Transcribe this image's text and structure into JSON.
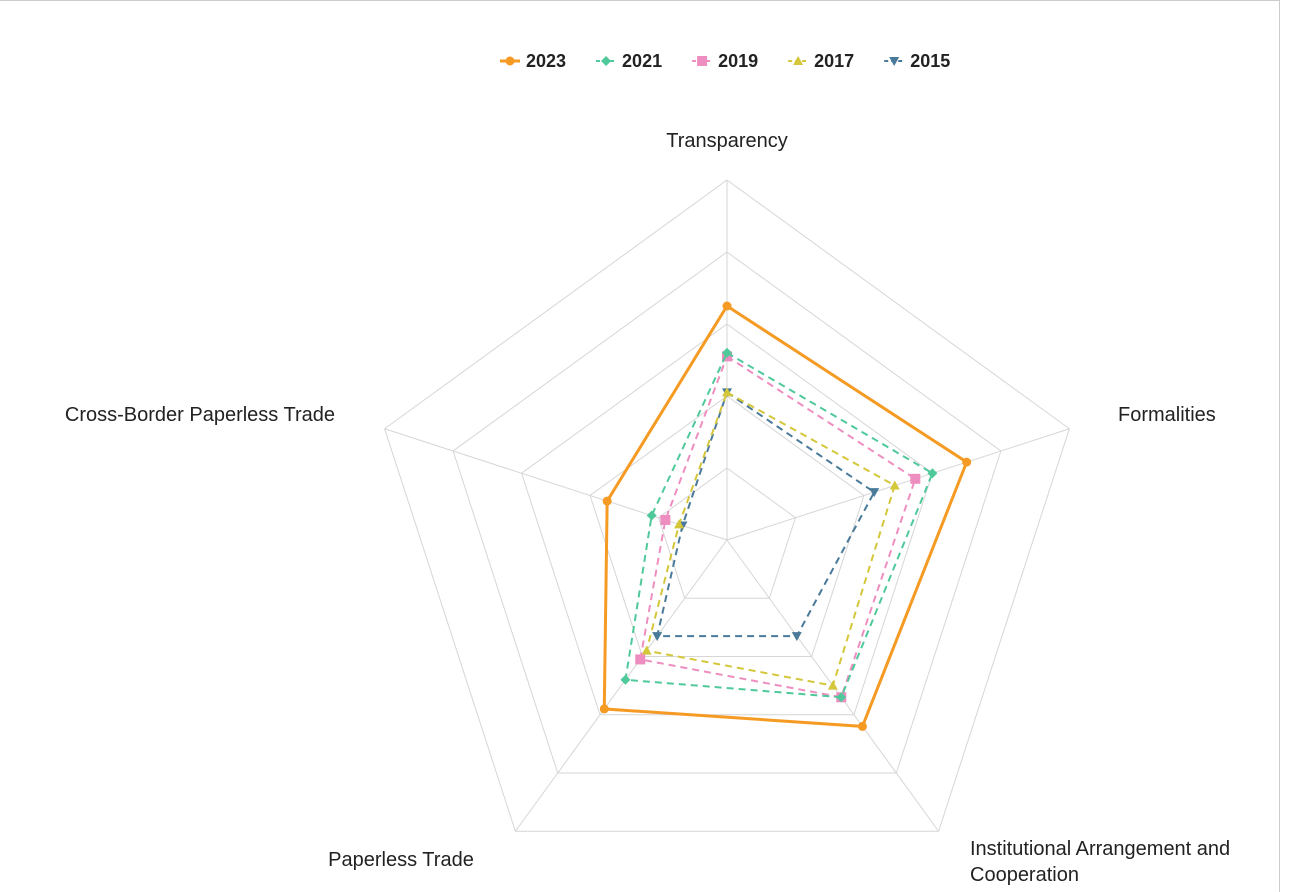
{
  "chart_data": {
    "type": "radar",
    "categories": [
      "Transparency",
      "Formalities",
      "Institutional Arrangement and Cooperation",
      "Paperless Trade",
      "Cross-Border Paperless Trade"
    ],
    "rlim": [
      0,
      100
    ],
    "rticks": [
      0,
      20,
      40,
      60,
      80,
      100
    ],
    "grid": true,
    "legend": "top",
    "series": [
      {
        "name": "2023",
        "color": "#f59a23",
        "style": "solid",
        "marker": "circle",
        "values": [
          65,
          70,
          64,
          58,
          35
        ]
      },
      {
        "name": "2021",
        "color": "#4fc99a",
        "style": "dashed",
        "marker": "diamond",
        "values": [
          52,
          60,
          54,
          48,
          22
        ]
      },
      {
        "name": "2019",
        "color": "#ee8ec0",
        "style": "dashed",
        "marker": "square",
        "values": [
          51,
          55,
          54,
          41,
          18
        ]
      },
      {
        "name": "2017",
        "color": "#d4c73a",
        "style": "dashed",
        "marker": "triangle",
        "values": [
          41,
          49,
          50,
          38,
          14
        ]
      },
      {
        "name": "2015",
        "color": "#4a7a99",
        "style": "dashed",
        "marker": "triangle-down",
        "values": [
          41,
          43,
          33,
          33,
          13
        ]
      }
    ]
  }
}
